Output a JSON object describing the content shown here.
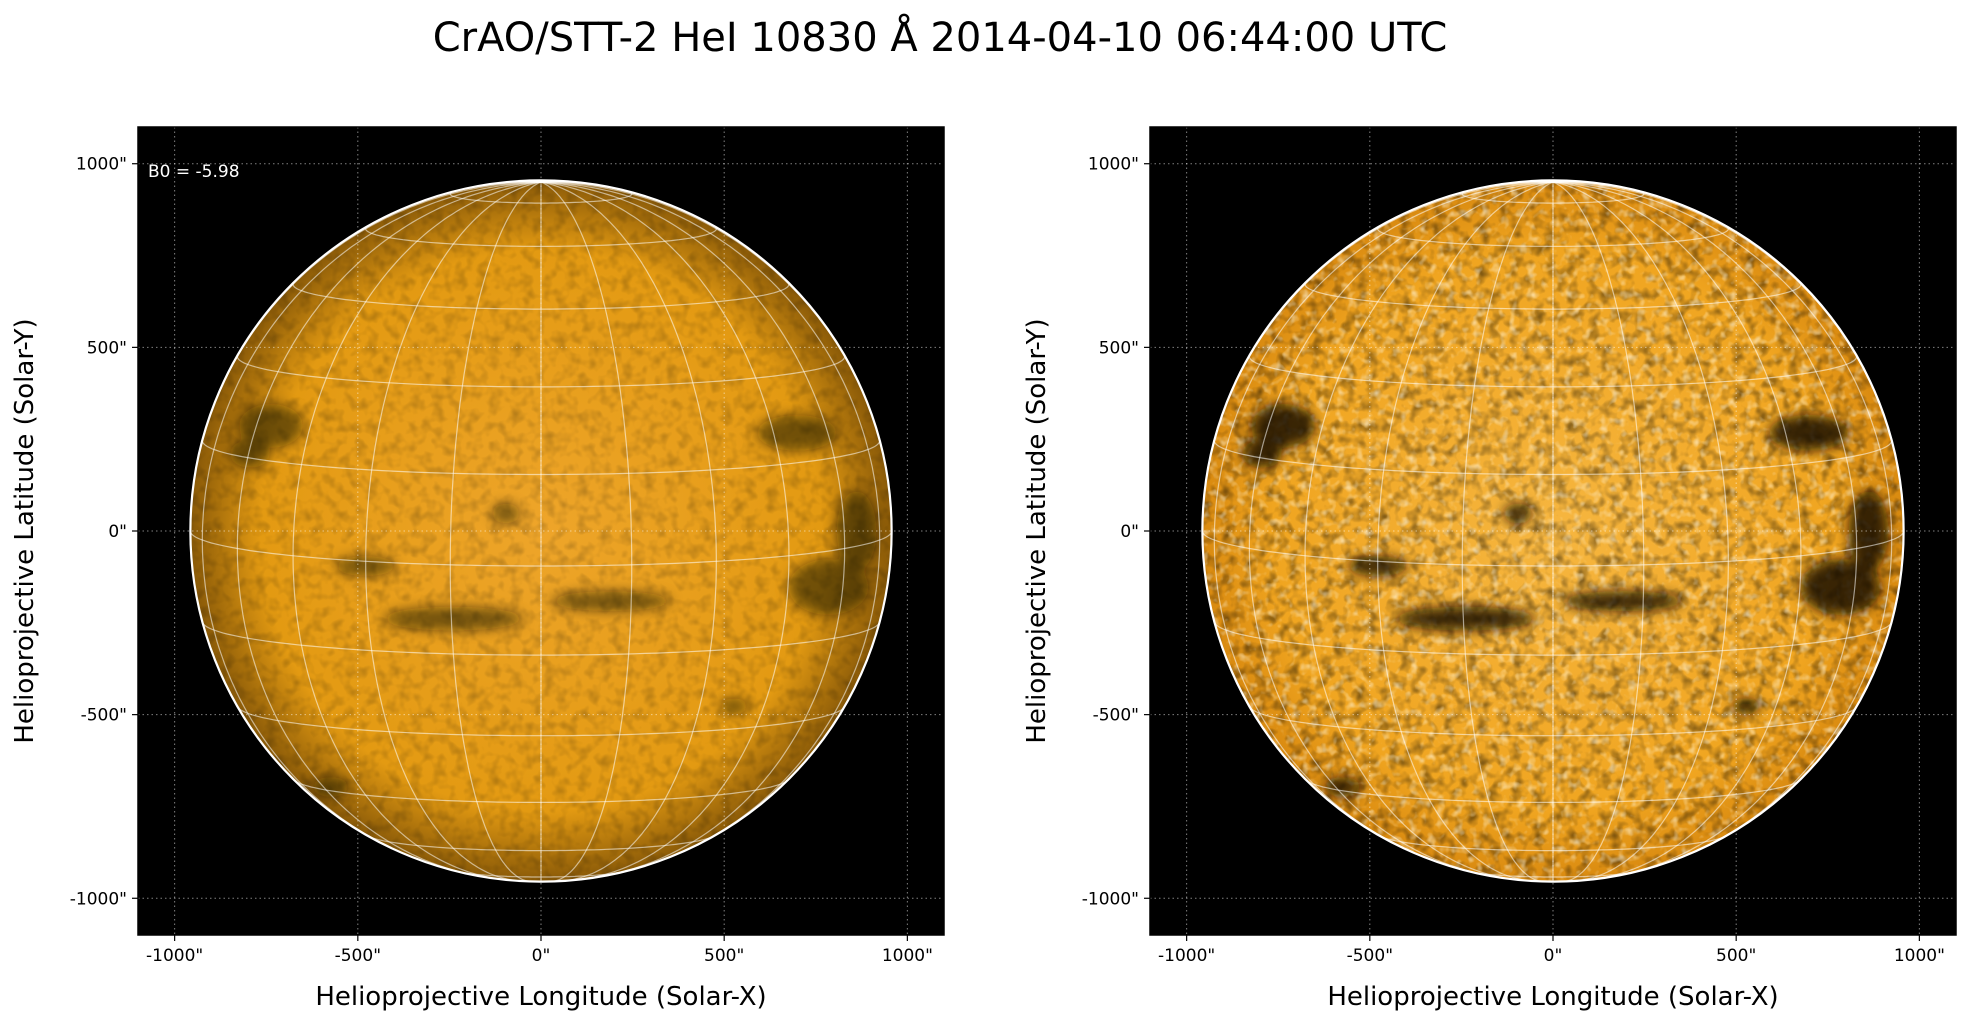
{
  "title": "CrAO/STT-2 HeI 10830 Å 2014-04-10 06:44:00 UTC",
  "chart_data": [
    {
      "type": "image",
      "xlabel": "Helioprojective Longitude (Solar-X)",
      "ylabel": "Helioprojective Latitude (Solar-Y)",
      "annotation": "B0 = -5.98",
      "xlim": [
        -1100,
        1100
      ],
      "ylim": [
        -1100,
        1100
      ],
      "xticks": [
        {
          "value": -1000,
          "label": "-1000\""
        },
        {
          "value": -500,
          "label": "-500\""
        },
        {
          "value": 0,
          "label": "0\""
        },
        {
          "value": 500,
          "label": "500\""
        },
        {
          "value": 1000,
          "label": "1000\""
        }
      ],
      "yticks": [
        {
          "value": -1000,
          "label": "-1000\""
        },
        {
          "value": -500,
          "label": "-500\""
        },
        {
          "value": 0,
          "label": "0\""
        },
        {
          "value": 500,
          "label": "500\""
        },
        {
          "value": 1000,
          "label": "1000\""
        }
      ],
      "grid": true,
      "color": "#e39a12"
    },
    {
      "type": "image",
      "xlabel": "Helioprojective Longitude (Solar-X)",
      "ylabel": "Helioprojective Latitude (Solar-Y)",
      "xlim": [
        -1100,
        1100
      ],
      "ylim": [
        -1100,
        1100
      ],
      "xticks": [
        {
          "value": -1000,
          "label": "-1000\""
        },
        {
          "value": -500,
          "label": "-500\""
        },
        {
          "value": 0,
          "label": "0\""
        },
        {
          "value": 500,
          "label": "500\""
        },
        {
          "value": 1000,
          "label": "1000\""
        }
      ],
      "yticks": [
        {
          "value": -1000,
          "label": "-1000\""
        },
        {
          "value": -500,
          "label": "-500\""
        },
        {
          "value": 0,
          "label": "0\""
        },
        {
          "value": 500,
          "label": "500\""
        },
        {
          "value": 1000,
          "label": "1000\""
        }
      ],
      "grid": true,
      "color": "#f0a520"
    }
  ]
}
